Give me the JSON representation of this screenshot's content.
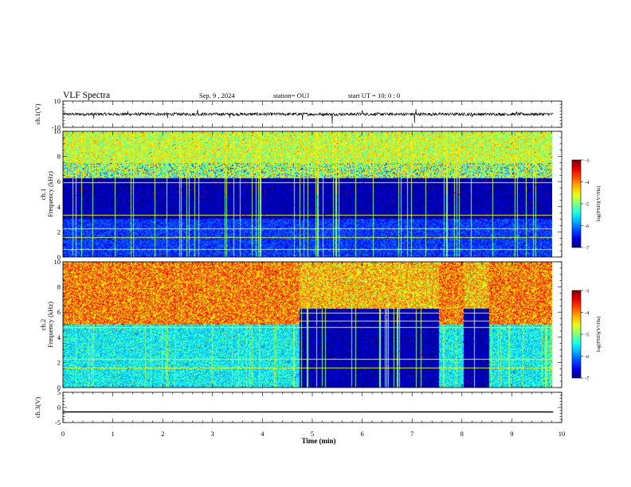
{
  "header": {
    "title": "VLF Spectra",
    "date": "Sep. 9 , 2024",
    "station": "station= OUJ",
    "start": "start UT =  10: 0  : 0"
  },
  "chart_data": [
    {
      "type": "line",
      "panel": "ch1-waveform",
      "ylabel": "ch.1(V)",
      "ylim": [
        -10,
        10
      ],
      "yticks": [
        10,
        -10
      ],
      "baseline": 0,
      "noise_amplitude": 1.2,
      "spikes": [
        {
          "x": 0.62,
          "y": -3.5
        },
        {
          "x": 1.3,
          "y": 2.5
        },
        {
          "x": 2.1,
          "y": -3.0
        },
        {
          "x": 2.7,
          "y": 3.0
        },
        {
          "x": 3.35,
          "y": -2.8
        },
        {
          "x": 4.8,
          "y": -4.5
        },
        {
          "x": 5.4,
          "y": -7.5
        },
        {
          "x": 6.0,
          "y": 2.8
        },
        {
          "x": 7.05,
          "y": -6.5
        },
        {
          "x": 7.08,
          "y": 4.0
        },
        {
          "x": 8.2,
          "y": -2.5
        },
        {
          "x": 9.1,
          "y": 2.2
        }
      ]
    },
    {
      "type": "heatmap",
      "panel": "ch1-spectrogram",
      "ylabel_top": "ch.1",
      "ylabel": "Frequency (kHz)",
      "ylim": [
        0,
        10
      ],
      "yticks": [
        0,
        2,
        4,
        6,
        8,
        10
      ],
      "colorbar": {
        "label": "log(PSD)(V²/Hz)",
        "range": [
          -7,
          -3
        ],
        "ticks": [
          -3,
          -4,
          -5,
          -6,
          -7
        ]
      },
      "xlim": [
        0,
        9.83
      ],
      "noise_band_kHz": [
        6.3,
        10
      ],
      "noise_level": -4.7,
      "quiet_band_kHz": [
        3.0,
        6.0
      ],
      "quiet_level": -6.8,
      "low_band_level": -6.3,
      "line_frequencies_kHz": [
        5.9,
        3.3,
        2.2,
        1.5,
        0.6
      ]
    },
    {
      "type": "heatmap",
      "panel": "ch2-spectrogram",
      "ylabel_top": "ch.2",
      "ylabel": "Frequency (kHz)",
      "ylim": [
        0,
        10
      ],
      "yticks": [
        0,
        2,
        4,
        6,
        8,
        10
      ],
      "colorbar": {
        "label": "log(PSD)(V²/Hz)",
        "range": [
          -7,
          -3
        ],
        "ticks": [
          -3,
          -4,
          -5,
          -6,
          -7
        ]
      },
      "xlim": [
        0,
        9.83
      ],
      "noise_band_kHz": [
        5.0,
        10
      ],
      "noise_level": -4.0,
      "low_band_level": -5.5,
      "quiet_intervals_min": [
        [
          4.75,
          7.55
        ],
        [
          8.05,
          8.55
        ]
      ],
      "quiet_level": -6.8,
      "line_frequencies_kHz": [
        5.9,
        5.3,
        4.8,
        2.2,
        1.5
      ]
    },
    {
      "type": "line",
      "panel": "ch3-waveform",
      "ylabel": "ch.3(V)",
      "ylim": [
        -5,
        5
      ],
      "yticks": [
        5,
        0,
        -5
      ],
      "x": [
        0,
        9.83
      ],
      "values": [
        -1.5,
        -1.5
      ]
    }
  ],
  "xaxis": {
    "label": "Time (min)",
    "ticks": [
      "0",
      "1",
      "2",
      "3",
      "4",
      "5",
      "6",
      "7",
      "8",
      "9",
      "10"
    ]
  }
}
